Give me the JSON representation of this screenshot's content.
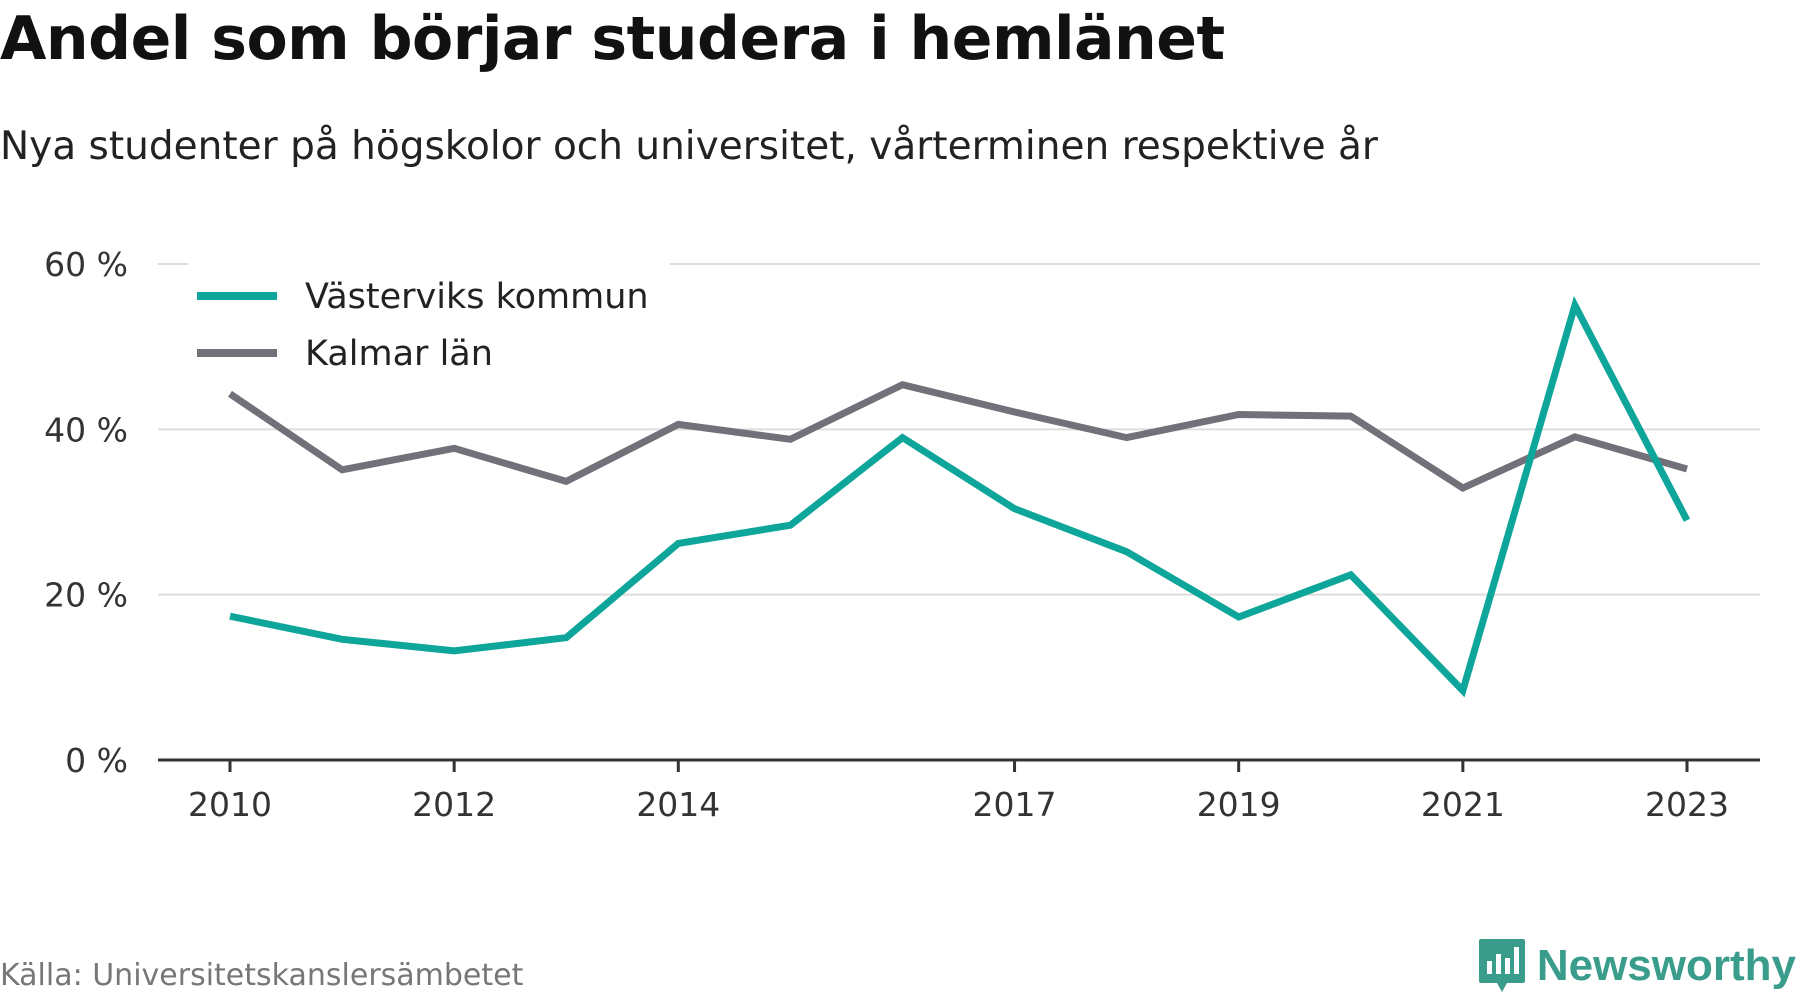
{
  "title": "Andel som börjar studera i hemlänet",
  "subtitle": "Nya studenter på högskolor och universitet, vårterminen respektive år",
  "source": "Källa: Universitetskanslersämbetet",
  "brand": {
    "name": "Newsworthy",
    "icon": "newsworthy-logo-icon",
    "color": "#3a9c8a"
  },
  "chart_data": {
    "type": "line",
    "x": [
      2010,
      2011,
      2012,
      2013,
      2014,
      2015,
      2016,
      2017,
      2018,
      2019,
      2020,
      2021,
      2022,
      2023
    ],
    "x_tick_labels": [
      "2010",
      "2012",
      "2014",
      "2017",
      "2019",
      "2021",
      "2023"
    ],
    "series": [
      {
        "name": "Västerviks kommun",
        "color": "#0ea59a",
        "values": [
          17.4,
          14.6,
          13.2,
          14.8,
          26.2,
          28.4,
          39.0,
          30.4,
          25.2,
          17.3,
          22.4,
          8.4,
          55.0,
          29.0
        ]
      },
      {
        "name": "Kalmar län",
        "color": "#727078",
        "values": [
          44.3,
          35.1,
          37.7,
          33.7,
          40.6,
          38.8,
          45.4,
          42.1,
          39.0,
          41.8,
          41.6,
          32.9,
          39.1,
          35.2
        ]
      }
    ],
    "ylim": [
      0,
      60
    ],
    "y_ticks": [
      0,
      20,
      40,
      60
    ],
    "y_tick_labels": [
      "0 %",
      "20 %",
      "40 %",
      "60 %"
    ],
    "xlabel": "",
    "ylabel": "",
    "grid": true,
    "legend_position": "top-left"
  }
}
